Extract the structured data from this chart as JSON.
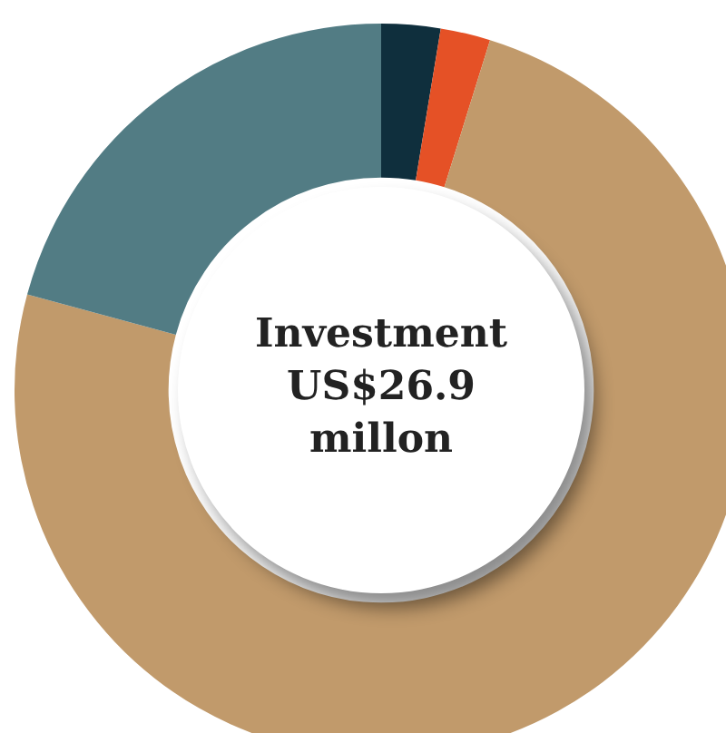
{
  "chart_data": {
    "type": "donut",
    "categories": [
      null,
      null,
      null,
      null
    ],
    "values": [
      2.6,
      2.2,
      74.4,
      20.8
    ],
    "colors": [
      "#0f2f3d",
      "#e55126",
      "#c19a6b",
      "#527c84"
    ],
    "annotations": [
      "Investment US$26.9 millon"
    ]
  }
}
